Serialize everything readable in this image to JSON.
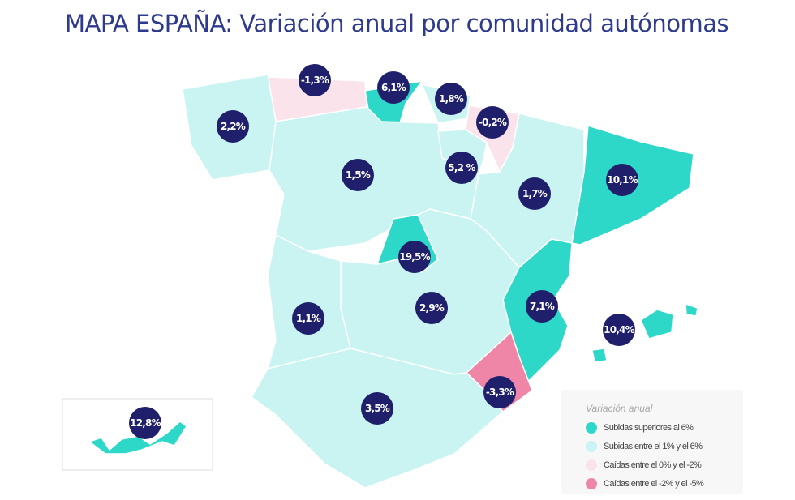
{
  "title": "MAPA ESPAÑA: Variación anual por comunidad autónomas",
  "colors": {
    "title": "#2e3a8c",
    "bubble": "#1f1f6b",
    "above_6": "#2ed8c9",
    "between_1_6": "#c9f4f2",
    "between_0_-2": "#fae3ea",
    "between_-2_-5": "#ef86a8"
  },
  "regions": [
    {
      "value": "-1,3%",
      "category": "between_0_-2"
    },
    {
      "value": "6,1%",
      "category": "above_6"
    },
    {
      "value": "1,8%",
      "category": "between_1_6"
    },
    {
      "value": "-0,2%",
      "category": "between_0_-2"
    },
    {
      "value": "2,2%",
      "category": "between_1_6"
    },
    {
      "value": "1,5%",
      "category": "between_1_6"
    },
    {
      "value": "5,2 %",
      "category": "between_1_6"
    },
    {
      "value": "1,7%",
      "category": "between_1_6"
    },
    {
      "value": "10,1%",
      "category": "above_6"
    },
    {
      "value": "19,5%",
      "category": "above_6"
    },
    {
      "value": "1,1%",
      "category": "between_1_6"
    },
    {
      "value": "2,9%",
      "category": "between_1_6"
    },
    {
      "value": "7,1%",
      "category": "above_6"
    },
    {
      "value": "10,4%",
      "category": "above_6"
    },
    {
      "value": "-3,3%",
      "category": "between_-2_-5"
    },
    {
      "value": "3,5%",
      "category": "between_1_6"
    },
    {
      "value": "12,8%",
      "category": "above_6"
    }
  ],
  "legend": {
    "title": "Variación anual",
    "items": [
      {
        "label": "Subidas superiores al 6%",
        "color": "#2ed8c9"
      },
      {
        "label": "Subidas entre el 1% y el 6%",
        "color": "#c9f4f2"
      },
      {
        "label": "Caídas entre el 0% y el -2%",
        "color": "#fae3ea"
      },
      {
        "label": "Caídas entre el -2% y el -5%",
        "color": "#ef86a8"
      }
    ]
  }
}
